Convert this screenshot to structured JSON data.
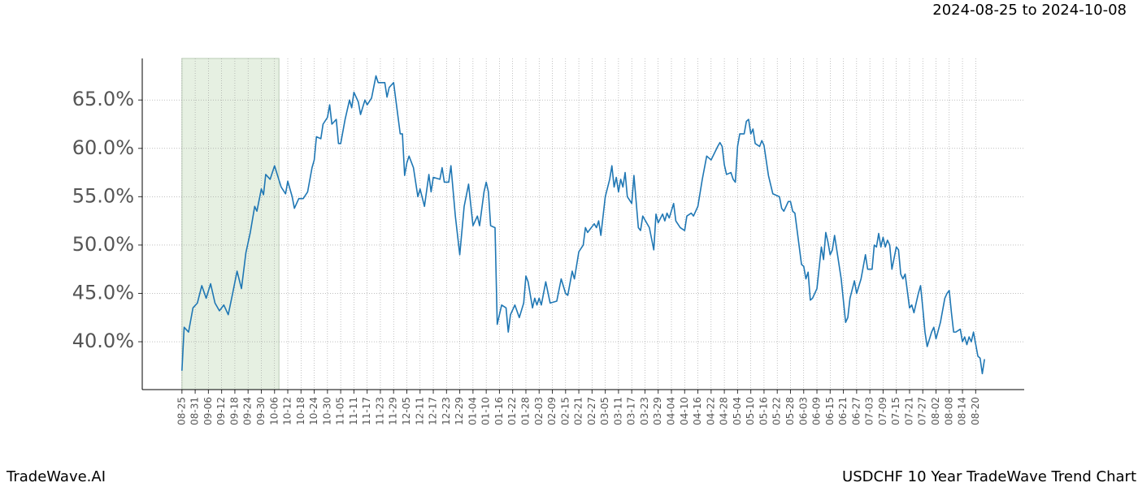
{
  "chart_data": {
    "type": "line",
    "title": "USDCHF 10 Year TradeWave Trend Chart",
    "subtitle": "2024-08-25 to 2024-10-08",
    "brand": "TradeWave.AI",
    "shaded_range": [
      0,
      44
    ],
    "shade_color": "#e6f0e2",
    "grid": true,
    "xlim": [
      -18,
      382
    ],
    "ylim": [
      35.05,
      69.3
    ],
    "yticks": [
      {
        "value": 40,
        "label": "40.0%"
      },
      {
        "value": 45,
        "label": "45.0%"
      },
      {
        "value": 50,
        "label": "50.0%"
      },
      {
        "value": 55,
        "label": "55.0%"
      },
      {
        "value": 60,
        "label": "60.0%"
      },
      {
        "value": 65,
        "label": "65.0%"
      }
    ],
    "xticks": [
      {
        "value": 0,
        "label": "08-25"
      },
      {
        "value": 6,
        "label": "08-31"
      },
      {
        "value": 12,
        "label": "09-06"
      },
      {
        "value": 18,
        "label": "09-12"
      },
      {
        "value": 24,
        "label": "09-18"
      },
      {
        "value": 30,
        "label": "09-24"
      },
      {
        "value": 36,
        "label": "09-30"
      },
      {
        "value": 42,
        "label": "10-06"
      },
      {
        "value": 48,
        "label": "10-12"
      },
      {
        "value": 54,
        "label": "10-18"
      },
      {
        "value": 60,
        "label": "10-24"
      },
      {
        "value": 66,
        "label": "10-30"
      },
      {
        "value": 72,
        "label": "11-05"
      },
      {
        "value": 78,
        "label": "11-11"
      },
      {
        "value": 84,
        "label": "11-17"
      },
      {
        "value": 90,
        "label": "11-23"
      },
      {
        "value": 96,
        "label": "11-29"
      },
      {
        "value": 102,
        "label": "12-05"
      },
      {
        "value": 108,
        "label": "12-11"
      },
      {
        "value": 114,
        "label": "12-17"
      },
      {
        "value": 120,
        "label": "12-23"
      },
      {
        "value": 126,
        "label": "12-29"
      },
      {
        "value": 132,
        "label": "01-04"
      },
      {
        "value": 138,
        "label": "01-10"
      },
      {
        "value": 144,
        "label": "01-16"
      },
      {
        "value": 150,
        "label": "01-22"
      },
      {
        "value": 156,
        "label": "01-28"
      },
      {
        "value": 162,
        "label": "02-03"
      },
      {
        "value": 168,
        "label": "02-09"
      },
      {
        "value": 174,
        "label": "02-15"
      },
      {
        "value": 180,
        "label": "02-21"
      },
      {
        "value": 186,
        "label": "02-27"
      },
      {
        "value": 192,
        "label": "03-05"
      },
      {
        "value": 198,
        "label": "03-11"
      },
      {
        "value": 204,
        "label": "03-17"
      },
      {
        "value": 210,
        "label": "03-23"
      },
      {
        "value": 216,
        "label": "03-29"
      },
      {
        "value": 222,
        "label": "04-04"
      },
      {
        "value": 228,
        "label": "04-10"
      },
      {
        "value": 234,
        "label": "04-16"
      },
      {
        "value": 240,
        "label": "04-22"
      },
      {
        "value": 246,
        "label": "04-28"
      },
      {
        "value": 252,
        "label": "05-04"
      },
      {
        "value": 258,
        "label": "05-10"
      },
      {
        "value": 264,
        "label": "05-16"
      },
      {
        "value": 270,
        "label": "05-22"
      },
      {
        "value": 276,
        "label": "05-28"
      },
      {
        "value": 282,
        "label": "06-03"
      },
      {
        "value": 288,
        "label": "06-09"
      },
      {
        "value": 294,
        "label": "06-15"
      },
      {
        "value": 300,
        "label": "06-21"
      },
      {
        "value": 306,
        "label": "06-27"
      },
      {
        "value": 312,
        "label": "07-03"
      },
      {
        "value": 318,
        "label": "07-09"
      },
      {
        "value": 324,
        "label": "07-15"
      },
      {
        "value": 330,
        "label": "07-21"
      },
      {
        "value": 336,
        "label": "07-27"
      },
      {
        "value": 342,
        "label": "08-02"
      },
      {
        "value": 348,
        "label": "08-08"
      },
      {
        "value": 354,
        "label": "08-14"
      },
      {
        "value": 360,
        "label": "08-20"
      }
    ],
    "x": [
      0,
      1,
      3,
      5,
      7,
      9,
      11,
      13,
      15,
      17,
      19,
      21,
      23,
      25,
      27,
      29,
      31,
      33,
      34,
      36,
      37,
      38,
      40,
      42,
      45,
      47,
      48,
      50,
      51,
      53,
      55,
      57,
      59,
      60,
      61,
      63,
      64,
      66,
      67,
      68,
      70,
      71,
      72,
      74,
      76,
      77,
      78,
      80,
      81,
      83,
      84,
      86,
      88,
      89,
      92,
      93,
      94,
      96,
      99,
      100,
      101,
      102,
      103,
      105,
      107,
      108,
      110,
      112,
      113,
      114,
      117,
      118,
      119,
      121,
      122,
      124,
      126,
      128,
      130,
      132,
      134,
      135,
      137,
      138,
      139,
      140,
      142,
      143,
      145,
      147,
      148,
      149,
      151,
      153,
      155,
      156,
      157,
      159,
      160,
      161,
      162,
      163,
      165,
      167,
      170,
      172,
      174,
      175,
      177,
      178,
      180,
      182,
      183,
      184,
      187,
      188,
      189,
      190,
      192,
      194,
      195,
      196,
      197,
      198,
      199,
      200,
      201,
      202,
      204,
      205,
      207,
      208,
      209,
      212,
      214,
      215,
      216,
      218,
      219,
      220,
      221,
      223,
      224,
      226,
      228,
      229,
      231,
      232,
      234,
      236,
      238,
      240,
      243,
      244,
      245,
      246,
      247,
      249,
      250,
      251,
      252,
      253,
      255,
      256,
      257,
      258,
      259,
      260,
      262,
      263,
      264,
      266,
      268,
      271,
      272,
      273,
      275,
      276,
      277,
      278,
      281,
      282,
      283,
      284,
      285,
      286,
      288,
      290,
      291,
      292,
      293,
      294,
      295,
      296,
      299,
      301,
      302,
      303,
      305,
      306,
      308,
      310,
      311,
      313,
      314,
      315,
      316,
      317,
      318,
      319,
      320,
      321,
      322,
      324,
      325,
      326,
      327,
      328,
      330,
      331,
      332,
      334,
      335,
      336,
      337,
      338,
      340,
      341,
      342,
      344,
      346,
      347,
      348,
      349,
      350,
      351,
      353,
      354,
      355,
      356,
      357,
      358,
      359,
      361,
      362,
      363,
      364
    ],
    "series": [
      {
        "name": "USDCHF",
        "color": "#1f77b4",
        "values": [
          37.0,
          41.5,
          41.0,
          43.5,
          44.0,
          45.8,
          44.5,
          46.0,
          44.0,
          43.2,
          43.8,
          42.8,
          45.0,
          47.3,
          45.5,
          49.2,
          51.3,
          54.0,
          53.5,
          55.8,
          55.2,
          57.3,
          56.8,
          58.2,
          56.0,
          55.3,
          56.6,
          55.0,
          53.8,
          54.8,
          54.8,
          55.5,
          58.0,
          58.8,
          61.2,
          61.0,
          62.5,
          63.2,
          64.5,
          62.5,
          63.0,
          60.5,
          60.5,
          63.0,
          65.0,
          64.2,
          65.8,
          64.8,
          63.5,
          65.0,
          64.5,
          65.2,
          67.5,
          66.8,
          66.8,
          65.3,
          66.3,
          66.8,
          61.5,
          61.5,
          57.2,
          58.5,
          59.2,
          58.0,
          55.0,
          55.8,
          54.0,
          57.3,
          55.5,
          57.0,
          56.8,
          58.0,
          56.5,
          56.5,
          58.2,
          53.0,
          49.0,
          54.0,
          56.3,
          52.0,
          53.0,
          52.0,
          55.5,
          56.5,
          55.5,
          52.0,
          51.8,
          41.8,
          43.8,
          43.5,
          41.0,
          42.8,
          43.8,
          42.5,
          44.0,
          46.8,
          46.2,
          43.5,
          44.5,
          43.8,
          44.5,
          43.8,
          46.2,
          44.0,
          44.2,
          46.5,
          45.0,
          44.8,
          47.3,
          46.5,
          49.3,
          50.0,
          51.8,
          51.3,
          52.2,
          51.8,
          52.5,
          51.0,
          55.0,
          56.8,
          58.2,
          56.0,
          57.0,
          55.5,
          56.8,
          56.0,
          57.5,
          55.0,
          54.3,
          57.2,
          51.8,
          51.5,
          53.0,
          51.8,
          49.5,
          53.2,
          52.3,
          53.2,
          52.5,
          53.3,
          52.8,
          54.3,
          52.5,
          51.8,
          51.5,
          53.0,
          53.3,
          53.0,
          54.0,
          56.8,
          59.2,
          58.8,
          60.2,
          60.6,
          60.2,
          58.3,
          57.3,
          57.5,
          56.8,
          56.5,
          60.2,
          61.5,
          61.5,
          62.8,
          63.0,
          61.5,
          62.0,
          60.5,
          60.2,
          60.8,
          60.3,
          57.2,
          55.3,
          55.0,
          53.8,
          53.5,
          54.5,
          54.5,
          53.5,
          53.3,
          48.0,
          47.8,
          46.5,
          47.2,
          44.3,
          44.5,
          45.5,
          49.8,
          48.5,
          51.3,
          50.3,
          49.0,
          49.5,
          51.0,
          46.5,
          42.0,
          42.5,
          44.5,
          46.3,
          45.0,
          46.5,
          49.0,
          47.5,
          47.5,
          50.0,
          49.8,
          51.2,
          49.8,
          50.8,
          49.8,
          50.5,
          50.0,
          47.5,
          49.8,
          49.5,
          47.0,
          46.5,
          47.0,
          43.5,
          43.8,
          43.0,
          45.0,
          45.8,
          43.5,
          41.0,
          39.5,
          41.0,
          41.5,
          40.3,
          42.0,
          44.5,
          45.0,
          45.3,
          43.0,
          41.0,
          41.0,
          41.3,
          40.0,
          40.5,
          39.7,
          40.5,
          40.0,
          41.0,
          38.5,
          38.3,
          36.7,
          38.2
        ]
      }
    ]
  }
}
